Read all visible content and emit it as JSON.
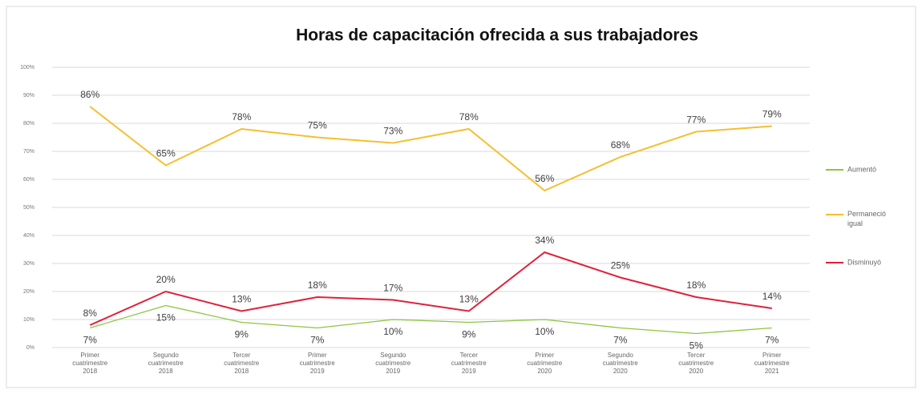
{
  "chart_data": {
    "type": "line",
    "title": "Horas de capacitación ofrecida a sus trabajadores",
    "categories": [
      "Primer cuatrimestre 2018",
      "Segundo cuatrimestre 2018",
      "Tercer cuatrimestre 2018",
      "Primer cuatrimestre 2019",
      "Segundo cuatrimestre 2019",
      "Tercer cuatrimestre 2019",
      "Primer cuatrimestre 2020",
      "Segundo cuatrimestre 2020",
      "Tercer cuatrimestre 2020",
      "Primer cuatrimestre 2021"
    ],
    "series": [
      {
        "name": "Aumentó",
        "color": "#8cc63f",
        "values": [
          7,
          15,
          9,
          7,
          10,
          9,
          10,
          7,
          5,
          7
        ],
        "value_labels": [
          "7%",
          "15%",
          "9%",
          "7%",
          "10%",
          "9%",
          "10%",
          "7%",
          "5%",
          "7%"
        ]
      },
      {
        "name": "Permaneció igual",
        "color": "#f5bf2f",
        "values": [
          86,
          65,
          78,
          75,
          73,
          78,
          56,
          68,
          77,
          79
        ],
        "value_labels": [
          "86%",
          "65%",
          "78%",
          "75%",
          "73%",
          "78%",
          "56%",
          "68%",
          "77%",
          "79%"
        ]
      },
      {
        "name": "Disminuyó",
        "color": "#e0203c",
        "values": [
          8,
          20,
          13,
          18,
          17,
          13,
          34,
          25,
          18,
          14
        ],
        "value_labels": [
          "8%",
          "20%",
          "13%",
          "18%",
          "17%",
          "13%",
          "34%",
          "25%",
          "18%",
          "14%"
        ]
      }
    ],
    "ylim": [
      0,
      100
    ],
    "yticks": [
      {
        "value": 0,
        "label": "0%"
      },
      {
        "value": 10,
        "label": "10%"
      },
      {
        "value": 20,
        "label": "20%"
      },
      {
        "value": 30,
        "label": "30%"
      },
      {
        "value": 40,
        "label": "40%"
      },
      {
        "value": 50,
        "label": "50%"
      },
      {
        "value": 60,
        "label": "60%"
      },
      {
        "value": 70,
        "label": "70%"
      },
      {
        "value": 80,
        "label": "80%"
      },
      {
        "value": 90,
        "label": "90%"
      },
      {
        "value": 100,
        "label": "100%"
      }
    ],
    "grid": true,
    "legend": "right"
  }
}
